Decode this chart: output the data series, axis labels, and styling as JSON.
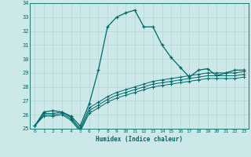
{
  "xlabel": "Humidex (Indice chaleur)",
  "ylabel": "",
  "background_color": "#cce8e8",
  "grid_color": "#b8d8d8",
  "line_color": "#006868",
  "xlim": [
    -0.5,
    23.5
  ],
  "ylim": [
    25,
    34
  ],
  "xticks": [
    0,
    1,
    2,
    3,
    4,
    5,
    6,
    7,
    8,
    9,
    10,
    11,
    12,
    13,
    14,
    15,
    16,
    17,
    18,
    19,
    20,
    21,
    22,
    23
  ],
  "yticks": [
    25,
    26,
    27,
    28,
    29,
    30,
    31,
    32,
    33,
    34
  ],
  "series_main": [
    25.2,
    26.2,
    26.3,
    26.2,
    25.9,
    25.2,
    26.8,
    29.2,
    32.3,
    33.0,
    33.3,
    33.5,
    32.3,
    32.3,
    31.0,
    30.1,
    29.4,
    28.7,
    29.2,
    29.3,
    28.8,
    29.0,
    29.2,
    29.2
  ],
  "series_extra": [
    [
      25.2,
      26.1,
      26.1,
      26.2,
      25.8,
      25.0,
      26.5,
      26.9,
      27.3,
      27.6,
      27.8,
      28.0,
      28.2,
      28.4,
      28.5,
      28.6,
      28.7,
      28.8,
      28.9,
      29.0,
      29.0,
      29.0,
      29.0,
      29.1
    ],
    [
      25.2,
      26.0,
      26.0,
      26.1,
      25.7,
      24.9,
      26.3,
      26.7,
      27.1,
      27.4,
      27.6,
      27.8,
      28.0,
      28.2,
      28.3,
      28.4,
      28.5,
      28.6,
      28.7,
      28.8,
      28.8,
      28.8,
      28.8,
      28.9
    ],
    [
      25.2,
      25.9,
      25.9,
      26.0,
      25.6,
      24.8,
      26.1,
      26.5,
      26.9,
      27.2,
      27.4,
      27.6,
      27.8,
      28.0,
      28.1,
      28.2,
      28.3,
      28.4,
      28.5,
      28.6,
      28.6,
      28.6,
      28.6,
      28.7
    ]
  ]
}
